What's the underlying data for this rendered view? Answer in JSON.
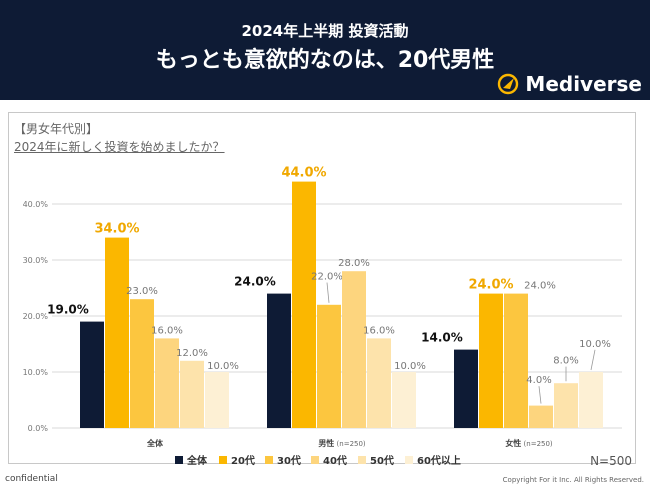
{
  "header": {
    "subtitle": "2024年上半期 投資活動",
    "title": "もっとも意欲的なのは、20代男性",
    "logo_text": "Mediverse"
  },
  "panel": {
    "category_title": "【男女年代別】",
    "question": "2024年に新しく投資を始めましたか？",
    "n_label": "N=500"
  },
  "footer": {
    "left": "confidential",
    "right": "Copyright For it Inc. All Rights Reserved."
  },
  "colors": {
    "header_bg": "#0e1b35",
    "series": [
      "#0e1b35",
      "#fbb700",
      "#fcc63f",
      "#fdd57e",
      "#fde3ab",
      "#fdf0d4"
    ],
    "highlight_label": "#f0a800"
  },
  "chart_data": {
    "type": "bar",
    "y_ticks": [
      "0.0%",
      "10.0%",
      "20.0%",
      "30.0%",
      "40.0%"
    ],
    "ylim": [
      0,
      44
    ],
    "categories": [
      "全体",
      "男性",
      "女性"
    ],
    "category_sublabels": [
      "",
      "(n=250)",
      "(n=250)"
    ],
    "series": [
      {
        "name": "全体",
        "values": [
          19.0,
          24.0,
          14.0
        ]
      },
      {
        "name": "20代",
        "values": [
          34.0,
          44.0,
          24.0
        ]
      },
      {
        "name": "30代",
        "values": [
          23.0,
          22.0,
          24.0
        ]
      },
      {
        "name": "40代",
        "values": [
          16.0,
          28.0,
          4.0
        ]
      },
      {
        "name": "50代",
        "values": [
          12.0,
          16.0,
          8.0
        ]
      },
      {
        "name": "60代以上",
        "values": [
          10.0,
          10.0,
          10.0
        ]
      }
    ],
    "data_labels": [
      [
        "19.0%",
        "34.0%",
        "23.0%",
        "16.0%",
        "12.0%",
        "10.0%"
      ],
      [
        "24.0%",
        "44.0%",
        "22.0%",
        "28.0%",
        "16.0%",
        "10.0%"
      ],
      [
        "14.0%",
        "24.0%",
        "24.0%",
        "4.0%",
        "8.0%",
        "10.0%"
      ]
    ],
    "grid": true,
    "legend_position": "bottom"
  }
}
